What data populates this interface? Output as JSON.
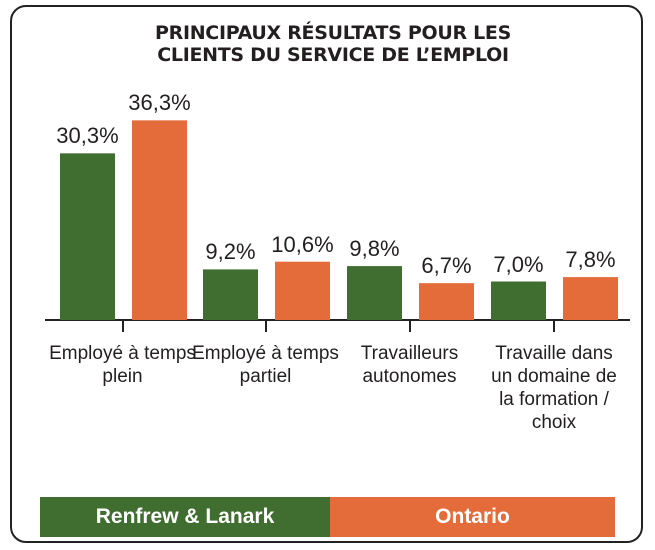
{
  "chart_data": {
    "type": "bar",
    "title": "PRINCIPAUX RÉSULTATS POUR LES CLIENTS DU SERVICE DE L’EMPLOI",
    "categories": [
      "Employé à temps plein",
      "Employé à temps partiel",
      "Travailleurs autonomes",
      "Travaille dans un domaine de la formation / choix"
    ],
    "series": [
      {
        "name": "Renfrew & Lanark",
        "color": "#3f6e30",
        "values": [
          30.3,
          9.2,
          9.8,
          7.0
        ],
        "value_labels": [
          "30,3%",
          "9,2%",
          "9,8%",
          "7,0%"
        ]
      },
      {
        "name": "Ontario",
        "color": "#e46c3a",
        "values": [
          36.3,
          10.6,
          6.7,
          7.8
        ],
        "value_labels": [
          "36,3%",
          "10,6%",
          "6,7%",
          "7,8%"
        ]
      }
    ]
  }
}
